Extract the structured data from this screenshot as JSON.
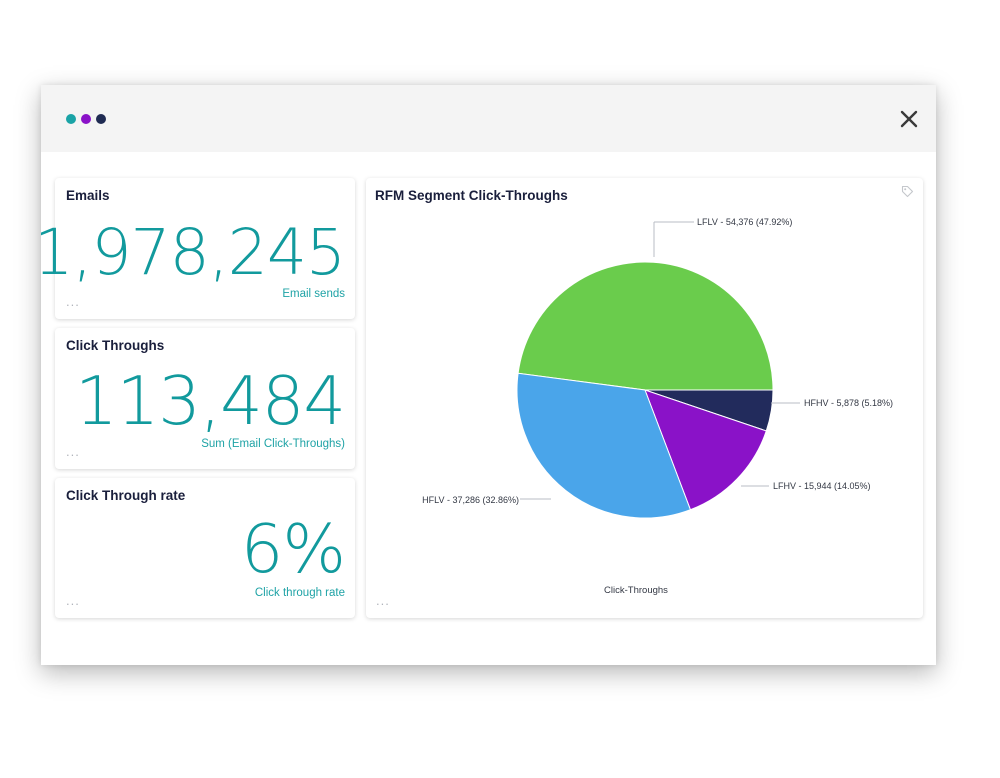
{
  "window": {
    "dot_colors": [
      "#1aa3a6",
      "#8a12c8",
      "#1f2b52"
    ],
    "close_icon": "close-icon"
  },
  "kpis": [
    {
      "title": "Emails",
      "value": "1,978,245",
      "subtitle": "Email sends",
      "more": "..."
    },
    {
      "title": "Click Throughs",
      "value": "113,484",
      "subtitle": "Sum (Email Click-Throughs)",
      "more": "..."
    },
    {
      "title": "Click Through rate",
      "value": "6%",
      "subtitle": "Click through rate",
      "more": "..."
    }
  ],
  "chart_panel": {
    "title": "RFM Segment Click-Throughs",
    "more": "...",
    "tag_icon": "tag-icon"
  },
  "chart_data": {
    "type": "pie",
    "title": "RFM Segment Click-Throughs",
    "xlabel": "Click-Throughs",
    "slices": [
      {
        "name": "LFLV",
        "value": 54376,
        "percent": 47.92,
        "label": "LFLV - 54,376 (47.92%)",
        "color": "#6acc4c"
      },
      {
        "name": "HFHV",
        "value": 5878,
        "percent": 5.18,
        "label": "HFHV - 5,878 (5.18%)",
        "color": "#222b5c"
      },
      {
        "name": "LFHV",
        "value": 15944,
        "percent": 14.05,
        "label": "LFHV - 15,944 (14.05%)",
        "color": "#8a12c8"
      },
      {
        "name": "HFLV",
        "value": 37286,
        "percent": 32.86,
        "label": "HFLV - 37,286 (32.86%)",
        "color": "#4aa5ea"
      }
    ]
  },
  "colors": {
    "accent": "#129a9d",
    "title_text": "#1a1f3c"
  }
}
